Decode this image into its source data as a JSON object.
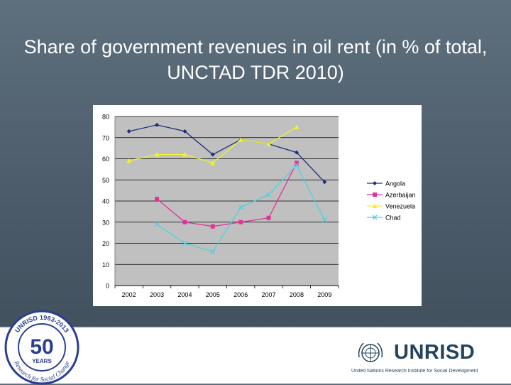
{
  "title": "Share of government revenues in oil rent (in % of total, UNCTAD TDR 2010)",
  "chart_data": {
    "type": "line",
    "title": "",
    "xlabel": "",
    "ylabel": "",
    "categories": [
      "2002",
      "2003",
      "2004",
      "2005",
      "2006",
      "2007",
      "2008",
      "2009"
    ],
    "ylim": [
      0,
      80
    ],
    "yticks": [
      0,
      10,
      20,
      30,
      40,
      50,
      60,
      70,
      80
    ],
    "grid": true,
    "legend_position": "right",
    "series": [
      {
        "name": "Angola",
        "color": "#1f2f7a",
        "marker": "diamond",
        "values": [
          73,
          76,
          73,
          62,
          69,
          67,
          63,
          49
        ]
      },
      {
        "name": "Azerbaijan",
        "color": "#e0339a",
        "marker": "square",
        "values": [
          null,
          41,
          30,
          28,
          30,
          32,
          58,
          null
        ]
      },
      {
        "name": "Venezuela",
        "color": "#f2f230",
        "marker": "triangle",
        "values": [
          59,
          62,
          62,
          58,
          69,
          67,
          75,
          null
        ]
      },
      {
        "name": "Chad",
        "color": "#4fd0e0",
        "marker": "x",
        "values": [
          null,
          29,
          20,
          16,
          37,
          43,
          57,
          31
        ]
      }
    ]
  },
  "branding": {
    "badge_years": "50",
    "badge_word": "YEARS",
    "badge_ring_top": "UNRISD 1963-2013",
    "badge_ring_bottom": "Research for Social Change",
    "org_name": "UNRISD",
    "org_subtitle": "United Nations Research Institute for Social Development"
  },
  "colors": {
    "plot_bg": "#c0c0c0",
    "badge_blue": "#2a3f8f",
    "org_blue": "#24435c"
  }
}
